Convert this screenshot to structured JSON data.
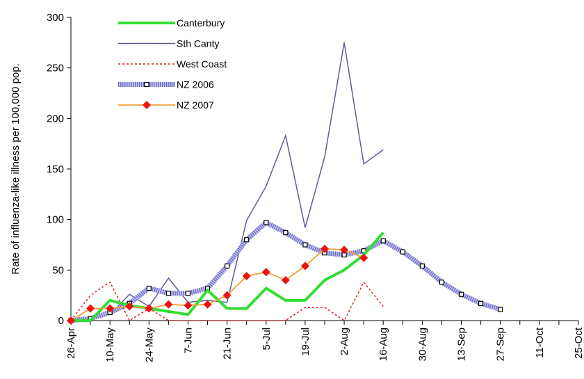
{
  "chart_data": {
    "type": "line",
    "title": "",
    "xlabel": "",
    "ylabel": "Rate of influenza-like illness per 100,000 pop.",
    "ylim": [
      0,
      300
    ],
    "yticks": [
      0,
      50,
      100,
      150,
      200,
      250,
      300
    ],
    "x_tick_labels": [
      "26-Apr",
      "10-May",
      "24-May",
      "7-Jun",
      "21-Jun",
      "5-Jul",
      "19-Jul",
      "2-Aug",
      "16-Aug",
      "30-Aug",
      "13-Sep",
      "27-Sep",
      "11-Oct",
      "25-Oct"
    ],
    "x_weeks": [
      "26-Apr",
      "3-May",
      "10-May",
      "17-May",
      "24-May",
      "31-May",
      "7-Jun",
      "14-Jun",
      "21-Jun",
      "28-Jun",
      "5-Jul",
      "12-Jul",
      "19-Jul",
      "26-Jul",
      "2-Aug",
      "9-Aug",
      "16-Aug",
      "23-Aug",
      "30-Aug",
      "6-Sep",
      "13-Sep",
      "20-Sep",
      "27-Sep",
      "4-Oct",
      "11-Oct",
      "18-Oct",
      "25-Oct"
    ],
    "grid": false,
    "legend_position": "top-left",
    "series": [
      {
        "name": "Canterbury",
        "color": "#33dd33",
        "style": "thick-solid",
        "values": [
          0,
          0,
          20,
          15,
          12,
          9,
          6,
          30,
          12,
          12,
          32,
          20,
          20,
          40,
          50,
          65,
          87
        ]
      },
      {
        "name": "Sth Canty",
        "color": "#5c5c96",
        "style": "solid",
        "values": [
          0,
          3,
          6,
          26,
          14,
          42,
          18,
          20,
          18,
          99,
          133,
          183,
          92,
          162,
          275,
          155,
          169
        ]
      },
      {
        "name": "West Coast",
        "color": "#dd2222",
        "style": "dashed",
        "values": [
          0,
          25,
          38,
          0,
          12,
          0,
          0,
          0,
          0,
          0,
          0,
          0,
          13,
          13,
          0,
          38,
          14
        ]
      },
      {
        "name": "NZ 2006",
        "color": "#6e6ecc",
        "style": "dotted-band-square-markers",
        "values": [
          0,
          2,
          8,
          17,
          32,
          27,
          27,
          32,
          54,
          80,
          97,
          87,
          75,
          67,
          65,
          69,
          79,
          68,
          54,
          38,
          26,
          17,
          11
        ]
      },
      {
        "name": "NZ 2007",
        "color": "#f5a033",
        "marker_color": "#ee1111",
        "style": "solid-diamond-markers",
        "values": [
          0,
          12,
          12,
          14,
          12,
          16,
          15,
          16,
          25,
          44,
          48,
          40,
          54,
          71,
          70,
          62
        ]
      }
    ]
  }
}
